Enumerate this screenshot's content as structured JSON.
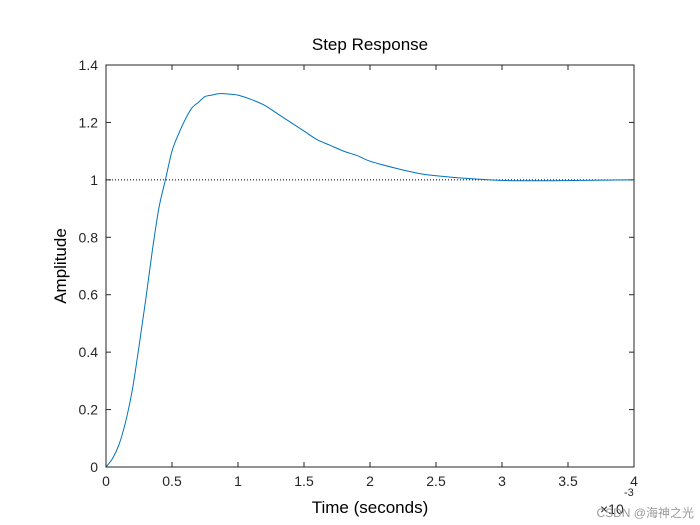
{
  "chart_data": {
    "type": "line",
    "title": "Step Response",
    "xlabel": "Time (seconds)",
    "ylabel": "Amplitude",
    "xlim": [
      0,
      4
    ],
    "ylim": [
      0,
      1.4
    ],
    "x_tick_labels": [
      "0",
      "0.5",
      "1",
      "1.5",
      "2",
      "2.5",
      "3",
      "3.5",
      "4"
    ],
    "y_tick_labels": [
      "0",
      "0.2",
      "0.4",
      "0.6",
      "0.8",
      "1",
      "1.2",
      "1.4"
    ],
    "x_exponent_base": "×10",
    "x_exponent_power": "-3",
    "reference_line": {
      "y": 1,
      "style": "dotted",
      "color": "#000000"
    },
    "series": [
      {
        "name": "Step Response",
        "color": "#0072BD",
        "x": [
          0,
          0.05,
          0.1,
          0.15,
          0.2,
          0.25,
          0.3,
          0.35,
          0.4,
          0.45,
          0.5,
          0.55,
          0.6,
          0.65,
          0.7,
          0.75,
          0.8,
          0.85,
          0.9,
          0.95,
          1.0,
          1.1,
          1.2,
          1.3,
          1.4,
          1.5,
          1.6,
          1.7,
          1.8,
          1.9,
          2.0,
          2.2,
          2.4,
          2.6,
          2.8,
          3.0,
          3.2,
          3.4,
          3.6,
          3.8,
          4.0
        ],
        "y": [
          0,
          0.03,
          0.08,
          0.16,
          0.27,
          0.42,
          0.58,
          0.75,
          0.9,
          1.0,
          1.1,
          1.16,
          1.21,
          1.25,
          1.27,
          1.29,
          1.295,
          1.3,
          1.3,
          1.298,
          1.295,
          1.28,
          1.26,
          1.23,
          1.2,
          1.17,
          1.14,
          1.12,
          1.1,
          1.085,
          1.065,
          1.04,
          1.02,
          1.01,
          1.003,
          0.998,
          0.997,
          0.997,
          0.998,
          0.999,
          1.0
        ]
      }
    ]
  },
  "watermark": "CSDN @海神之光"
}
